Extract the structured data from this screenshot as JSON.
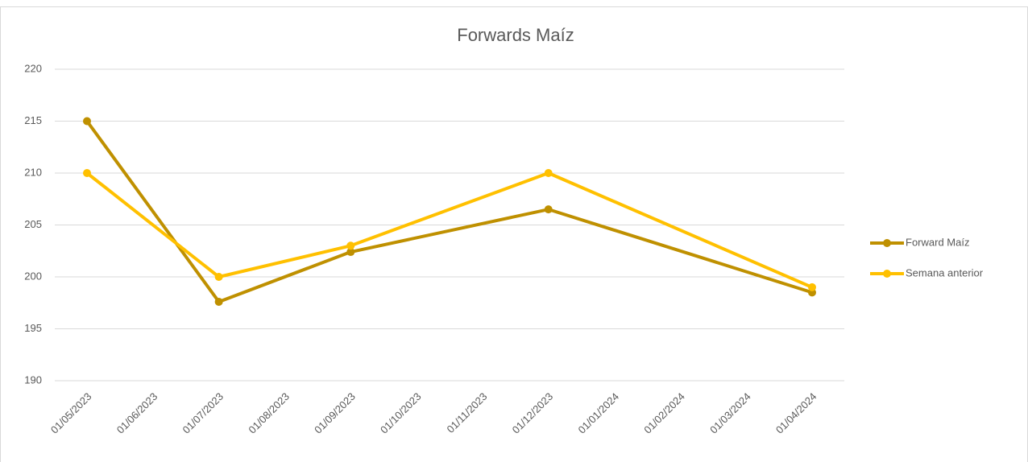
{
  "chart_data": {
    "type": "line",
    "title": "Forwards Maíz",
    "x": [
      "01/05/2023",
      "01/07/2023",
      "01/09/2023",
      "01/12/2023",
      "01/04/2024"
    ],
    "xticks": [
      "01/05/2023",
      "01/06/2023",
      "01/07/2023",
      "01/08/2023",
      "01/09/2023",
      "01/10/2023",
      "01/11/2023",
      "01/12/2023",
      "01/01/2024",
      "01/02/2024",
      "01/03/2024",
      "01/04/2024"
    ],
    "series": [
      {
        "name": "Forward Maíz",
        "color": "#bf9000",
        "values": [
          215,
          197.6,
          202.4,
          206.5,
          198.5
        ]
      },
      {
        "name": "Semana anterior",
        "color": "#ffc000",
        "values": [
          210,
          200,
          203,
          210,
          199
        ]
      }
    ],
    "ylim": [
      190,
      220
    ],
    "yticks": [
      190,
      195,
      200,
      205,
      210,
      215,
      220
    ],
    "grid": true,
    "legend": "right"
  }
}
